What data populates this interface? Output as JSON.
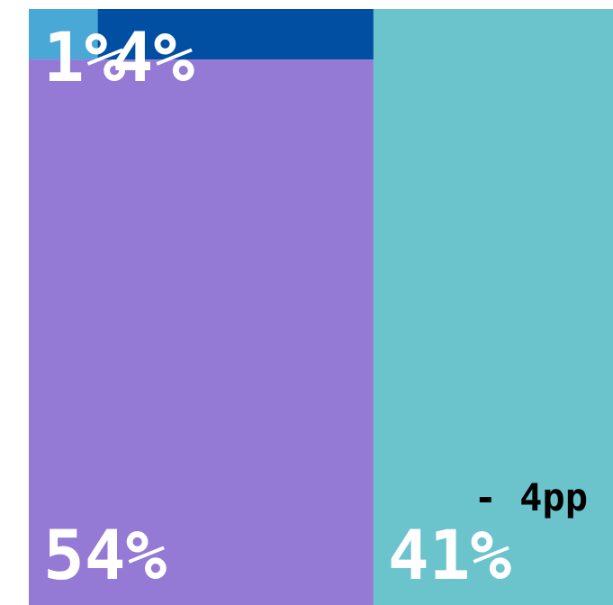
{
  "chart_data": {
    "type": "treemap",
    "values": [
      1,
      4,
      54,
      41
    ],
    "value_labels": [
      "1%",
      "4%",
      "54%",
      "41%"
    ],
    "colors": [
      "#4aa8d6",
      "#004fa3",
      "#9479d5",
      "#6bc3cc"
    ],
    "annotation": "- 4pp"
  }
}
